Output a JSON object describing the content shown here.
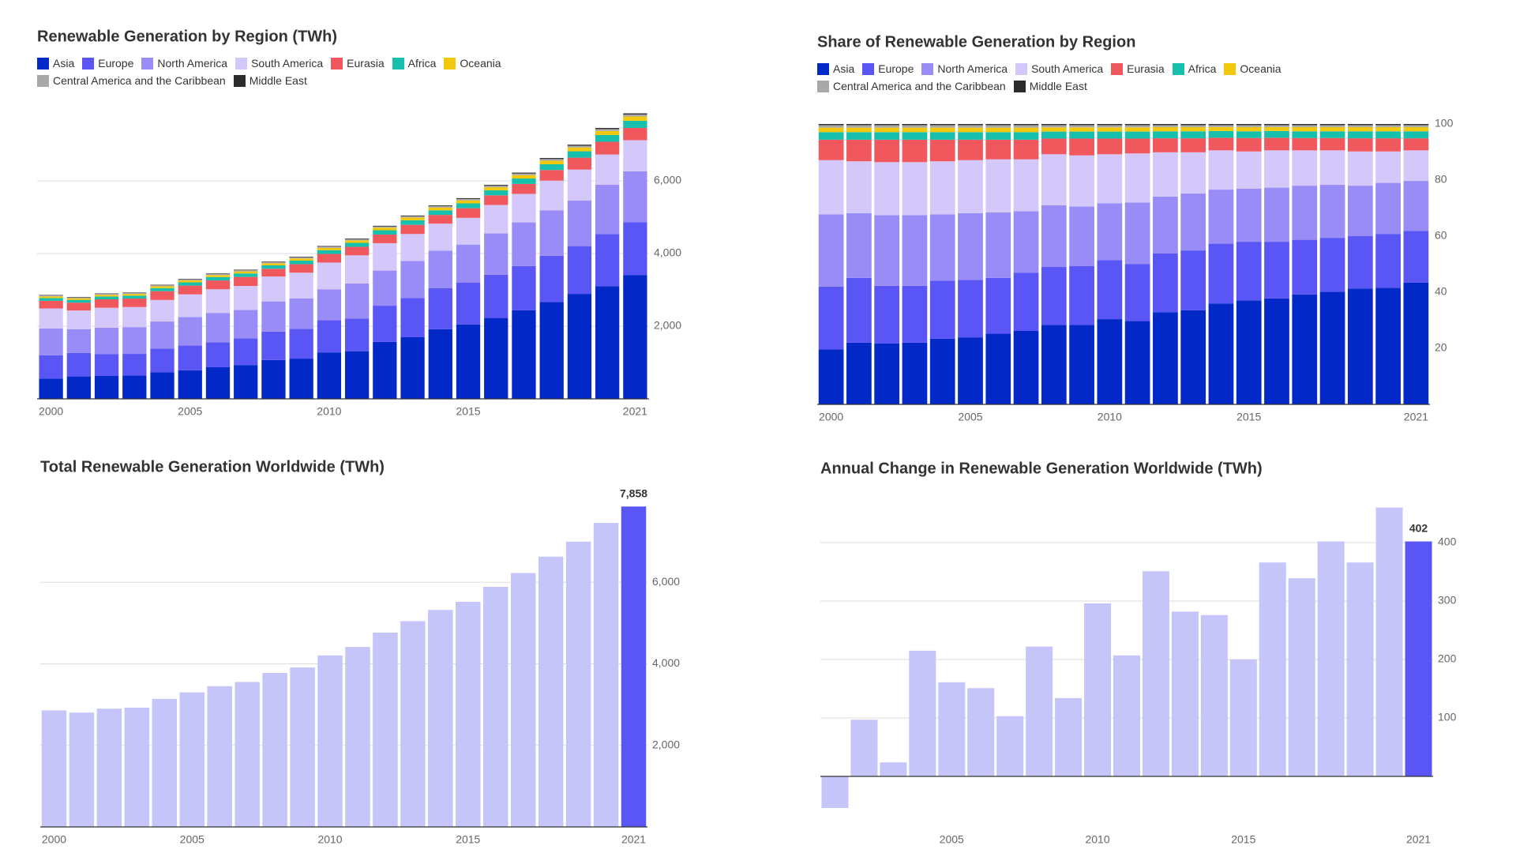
{
  "chart_data": [
    {
      "type": "bar",
      "stacked": true,
      "title": "Renewable Generation by Region (TWh)",
      "x": [
        2000,
        2001,
        2002,
        2003,
        2004,
        2005,
        2006,
        2007,
        2008,
        2009,
        2010,
        2011,
        2012,
        2013,
        2014,
        2015,
        2016,
        2017,
        2018,
        2019,
        2020,
        2021
      ],
      "xlim": [
        1999.5,
        2021.5
      ],
      "xticks": [
        2000,
        2005,
        2010,
        2015,
        2021
      ],
      "ylim": [
        0,
        8000
      ],
      "yticks": [
        {
          "value": 2000,
          "label": "2,000"
        },
        {
          "value": 4000,
          "label": "4,000"
        },
        {
          "value": 6000,
          "label": "6,000"
        }
      ],
      "grid": true,
      "series": [
        {
          "name": "Asia",
          "color": "#0328c8",
          "values": [
            560,
            617,
            630,
            644,
            735,
            786,
            870,
            931,
            1069,
            1107,
            1279,
            1311,
            1568,
            1696,
            1916,
            2049,
            2226,
            2441,
            2665,
            2889,
            3102,
            3410
          ]
        },
        {
          "name": "Europe",
          "color": "#5a55f5",
          "values": [
            640,
            648,
            598,
            594,
            650,
            680,
            687,
            736,
            782,
            821,
            883,
            896,
            996,
            1075,
            1134,
            1154,
            1190,
            1214,
            1273,
            1315,
            1432,
            1454
          ]
        },
        {
          "name": "North America",
          "color": "#9a8cf6",
          "values": [
            737,
            648,
            731,
            737,
            744,
            786,
            808,
            782,
            831,
            833,
            854,
            971,
            967,
            1025,
            1027,
            1044,
            1137,
            1202,
            1253,
            1252,
            1357,
            1399
          ]
        },
        {
          "name": "South America",
          "color": "#d4c8fa",
          "values": [
            552,
            519,
            548,
            553,
            593,
            624,
            652,
            658,
            687,
            712,
            736,
            772,
            753,
            742,
            745,
            735,
            783,
            785,
            815,
            854,
            835,
            857
          ]
        },
        {
          "name": "Eurasia",
          "color": "#f0585e",
          "values": [
            209,
            216,
            232,
            234,
            242,
            241,
            242,
            249,
            212,
            235,
            236,
            234,
            238,
            252,
            240,
            265,
            265,
            274,
            292,
            329,
            350,
            338
          ]
        },
        {
          "name": "Africa",
          "color": "#17bfad",
          "values": [
            77,
            76,
            78,
            79,
            85,
            89,
            93,
            96,
            94,
            98,
            105,
            110,
            119,
            126,
            128,
            133,
            141,
            149,
            159,
            175,
            186,
            196
          ]
        },
        {
          "name": "Oceania",
          "color": "#f2c80c",
          "values": [
            46,
            45,
            46,
            47,
            50,
            53,
            55,
            57,
            57,
            59,
            63,
            66,
            71,
            76,
            75,
            83,
            82,
            93,
            99,
            105,
            112,
            118
          ]
        },
        {
          "name": "Central America and the Caribbean",
          "color": "#a8a8a8",
          "values": [
            26,
            25,
            26,
            26,
            28,
            30,
            31,
            32,
            30,
            31,
            34,
            35,
            33,
            35,
            37,
            39,
            41,
            44,
            46,
            49,
            52,
            55
          ]
        },
        {
          "name": "Middle East",
          "color": "#2b2b2b",
          "values": [
            11,
            11,
            12,
            12,
            13,
            13,
            14,
            14,
            15,
            16,
            17,
            18,
            19,
            20,
            21,
            22,
            24,
            25,
            27,
            28,
            30,
            31
          ]
        }
      ]
    },
    {
      "type": "bar",
      "stacked": true,
      "title": "Share of Renewable Generation by Region",
      "x": [
        2000,
        2001,
        2002,
        2003,
        2004,
        2005,
        2006,
        2007,
        2008,
        2009,
        2010,
        2011,
        2012,
        2013,
        2014,
        2015,
        2016,
        2017,
        2018,
        2019,
        2020,
        2021
      ],
      "xlim": [
        1999.5,
        2021.5
      ],
      "xticks": [
        2000,
        2005,
        2010,
        2015,
        2021
      ],
      "ylim": [
        0,
        100
      ],
      "yticks": [
        20,
        40,
        60,
        80,
        100
      ],
      "grid": false,
      "series": [
        {
          "name": "Asia",
          "color": "#0328c8",
          "values": [
            19.6,
            22.0,
            21.7,
            22.0,
            23.4,
            23.8,
            25.2,
            26.2,
            28.3,
            28.3,
            30.4,
            29.7,
            32.9,
            33.6,
            36.0,
            37.1,
            37.8,
            39.2,
            40.2,
            41.3,
            41.6,
            43.4
          ]
        },
        {
          "name": "Europe",
          "color": "#5a55f5",
          "values": [
            22.4,
            23.1,
            20.6,
            20.3,
            20.7,
            20.6,
            19.9,
            20.7,
            20.7,
            21.0,
            21.0,
            20.3,
            20.9,
            21.3,
            21.3,
            20.9,
            20.2,
            19.5,
            19.2,
            18.8,
            19.2,
            18.5
          ]
        },
        {
          "name": "North America",
          "color": "#9a8cf6",
          "values": [
            25.8,
            23.1,
            25.2,
            25.2,
            23.7,
            23.8,
            23.4,
            22.0,
            22.0,
            21.3,
            20.3,
            22.0,
            20.3,
            20.3,
            19.3,
            18.9,
            19.3,
            19.3,
            18.9,
            17.9,
            18.2,
            17.8
          ]
        },
        {
          "name": "South America",
          "color": "#d4c8fa",
          "values": [
            19.3,
            18.5,
            18.9,
            18.9,
            18.9,
            18.9,
            18.9,
            18.5,
            18.2,
            18.2,
            17.5,
            17.5,
            15.8,
            14.7,
            14.0,
            13.3,
            13.3,
            12.6,
            12.3,
            12.2,
            11.2,
            10.9
          ]
        },
        {
          "name": "Eurasia",
          "color": "#f0585e",
          "values": [
            7.3,
            7.7,
            8.0,
            8.0,
            7.7,
            7.3,
            7.0,
            7.0,
            5.6,
            6.0,
            5.6,
            5.3,
            5.0,
            5.0,
            4.5,
            4.8,
            4.5,
            4.4,
            4.4,
            4.7,
            4.7,
            4.3
          ]
        },
        {
          "name": "Africa",
          "color": "#17bfad",
          "values": [
            2.7,
            2.7,
            2.7,
            2.7,
            2.7,
            2.7,
            2.7,
            2.7,
            2.5,
            2.5,
            2.5,
            2.5,
            2.5,
            2.5,
            2.4,
            2.4,
            2.4,
            2.4,
            2.4,
            2.5,
            2.5,
            2.5
          ]
        },
        {
          "name": "Oceania",
          "color": "#f2c80c",
          "values": [
            1.6,
            1.6,
            1.6,
            1.6,
            1.6,
            1.6,
            1.6,
            1.6,
            1.5,
            1.5,
            1.5,
            1.5,
            1.5,
            1.5,
            1.4,
            1.5,
            1.4,
            1.5,
            1.5,
            1.5,
            1.5,
            1.5
          ]
        },
        {
          "name": "Central America and the Caribbean",
          "color": "#a8a8a8",
          "values": [
            0.9,
            0.9,
            0.9,
            0.9,
            0.9,
            0.9,
            0.9,
            0.9,
            0.8,
            0.8,
            0.8,
            0.8,
            0.7,
            0.7,
            0.7,
            0.7,
            0.7,
            0.7,
            0.7,
            0.7,
            0.7,
            0.7
          ]
        },
        {
          "name": "Middle East",
          "color": "#2b2b2b",
          "values": [
            0.4,
            0.4,
            0.4,
            0.4,
            0.4,
            0.4,
            0.4,
            0.4,
            0.4,
            0.4,
            0.4,
            0.4,
            0.4,
            0.4,
            0.4,
            0.4,
            0.4,
            0.4,
            0.4,
            0.4,
            0.4,
            0.4
          ]
        }
      ]
    },
    {
      "type": "bar",
      "title": "Total Renewable Generation Worldwide (TWh)",
      "x": [
        2000,
        2001,
        2002,
        2003,
        2004,
        2005,
        2006,
        2007,
        2008,
        2009,
        2010,
        2011,
        2012,
        2013,
        2014,
        2015,
        2016,
        2017,
        2018,
        2019,
        2020,
        2021
      ],
      "xlim": [
        1999.5,
        2021.5
      ],
      "xticks": [
        2000,
        2005,
        2010,
        2015,
        2021
      ],
      "ylim": [
        0,
        8000
      ],
      "yticks": [
        {
          "value": 2000,
          "label": "2,000"
        },
        {
          "value": 4000,
          "label": "4,000"
        },
        {
          "value": 6000,
          "label": "6,000"
        }
      ],
      "grid": true,
      "color": "#c5c5fa",
      "highlight_color": "#5a55f5",
      "values": [
        2858,
        2804,
        2901,
        2925,
        3140,
        3301,
        3452,
        3555,
        3777,
        3911,
        4207,
        4414,
        4765,
        5047,
        5323,
        5523,
        5889,
        6228,
        6630,
        6996,
        7456,
        7858
      ],
      "value_labels": [
        null,
        null,
        null,
        null,
        null,
        null,
        null,
        null,
        null,
        null,
        null,
        null,
        null,
        null,
        null,
        null,
        null,
        null,
        null,
        null,
        null,
        "7,858"
      ]
    },
    {
      "type": "bar",
      "title": "Annual Change in Renewable Generation Worldwide (TWh)",
      "x": [
        2001,
        2002,
        2003,
        2004,
        2005,
        2006,
        2007,
        2008,
        2009,
        2010,
        2011,
        2012,
        2013,
        2014,
        2015,
        2016,
        2017,
        2018,
        2019,
        2020,
        2021
      ],
      "xlim": [
        2000.5,
        2021.5
      ],
      "xticks": [
        2005,
        2010,
        2015,
        2021
      ],
      "ylim": [
        -100,
        500
      ],
      "yticks": [
        100,
        200,
        300,
        400
      ],
      "grid": true,
      "color": "#c5c5fa",
      "highlight_color": "#5a55f5",
      "values": [
        -54,
        97,
        24,
        215,
        161,
        151,
        103,
        222,
        134,
        296,
        207,
        351,
        282,
        276,
        200,
        366,
        339,
        402,
        366,
        460,
        402
      ],
      "value_labels": [
        null,
        null,
        null,
        null,
        null,
        null,
        null,
        null,
        null,
        null,
        null,
        null,
        null,
        null,
        null,
        null,
        null,
        null,
        null,
        null,
        "402"
      ]
    }
  ]
}
